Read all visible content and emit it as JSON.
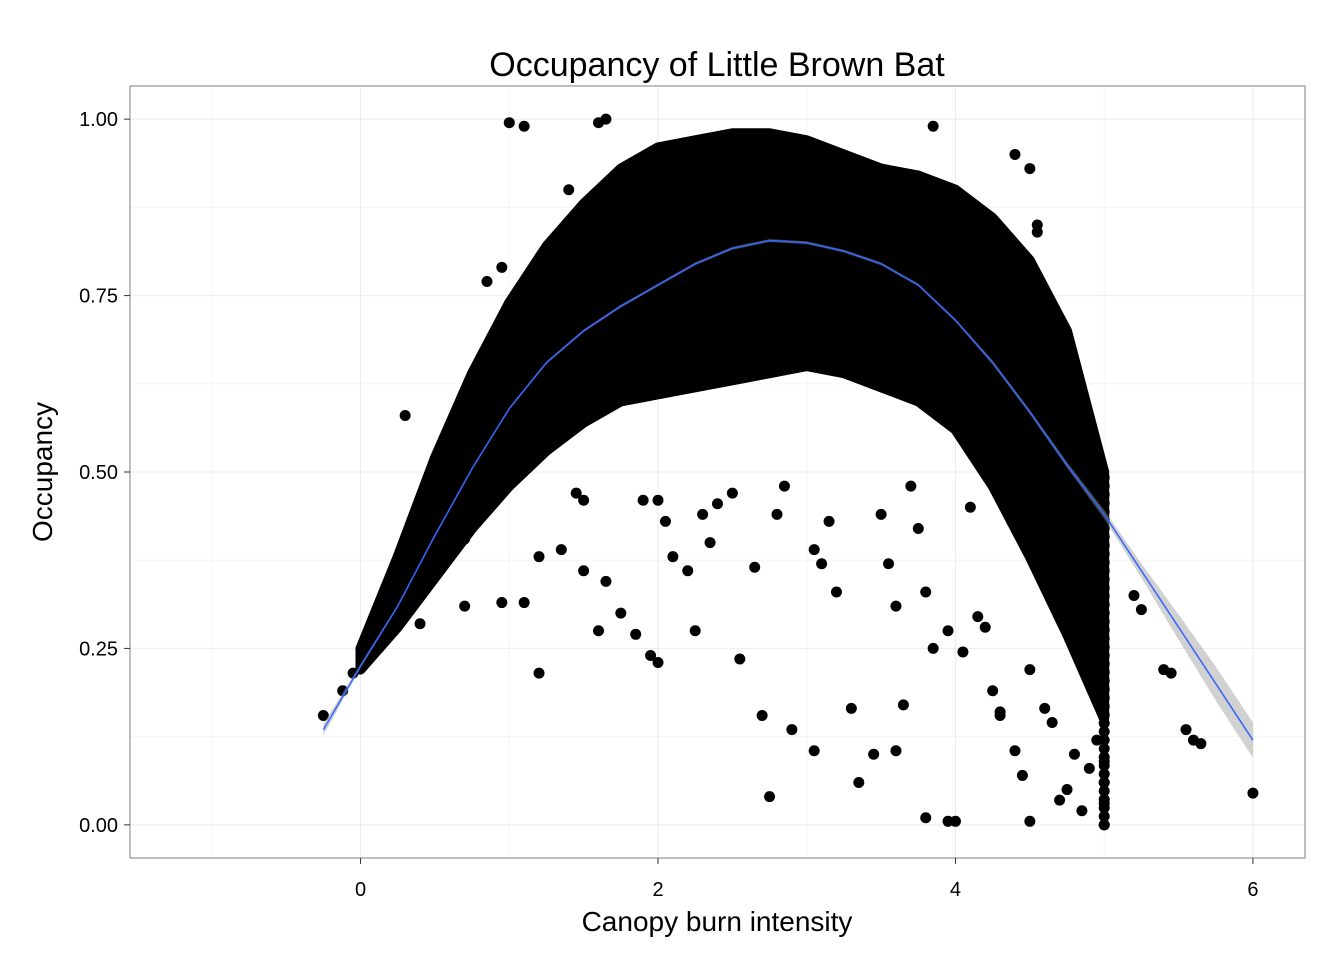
{
  "chart_data": {
    "type": "scatter",
    "title": "Occupancy of Little Brown Bat",
    "xlabel": "Canopy burn intensity",
    "ylabel": "Occupancy",
    "xlim": [
      -1.55,
      6.35
    ],
    "ylim": [
      -0.047,
      1.047
    ],
    "x_ticks": [
      0,
      2,
      4,
      6
    ],
    "x_tick_labels": [
      "0",
      "2",
      "4",
      "6"
    ],
    "y_ticks": [
      0,
      0.25,
      0.5,
      0.75,
      1.0
    ],
    "y_tick_labels": [
      "0.00",
      "0.25",
      "0.50",
      "0.75",
      "1.00"
    ],
    "grid": true,
    "colors": {
      "points": "#000000",
      "smooth_line": "#3366FF",
      "ci_band": "#999999",
      "grid": "#EBEBEB",
      "panel_border": "#7F7F7F"
    },
    "smooth": {
      "x": [
        -0.25,
        0,
        0.25,
        0.5,
        0.75,
        1.0,
        1.25,
        1.5,
        1.75,
        2.0,
        2.25,
        2.5,
        2.75,
        3.0,
        3.25,
        3.5,
        3.75,
        4.0,
        4.25,
        4.5,
        4.75,
        5.0,
        5.25,
        5.5,
        5.75,
        6.0
      ],
      "y": [
        0.135,
        0.225,
        0.31,
        0.41,
        0.505,
        0.59,
        0.655,
        0.7,
        0.735,
        0.765,
        0.795,
        0.817,
        0.828,
        0.825,
        0.813,
        0.795,
        0.765,
        0.715,
        0.655,
        0.585,
        0.51,
        0.44,
        0.36,
        0.28,
        0.2,
        0.12
      ],
      "ci_lower": [
        0.127,
        0.222,
        0.308,
        0.408,
        0.503,
        0.588,
        0.653,
        0.698,
        0.733,
        0.763,
        0.793,
        0.815,
        0.826,
        0.823,
        0.811,
        0.793,
        0.763,
        0.713,
        0.652,
        0.582,
        0.506,
        0.434,
        0.35,
        0.262,
        0.176,
        0.095
      ],
      "ci_upper": [
        0.143,
        0.228,
        0.312,
        0.412,
        0.507,
        0.592,
        0.657,
        0.702,
        0.737,
        0.767,
        0.797,
        0.819,
        0.83,
        0.827,
        0.815,
        0.797,
        0.767,
        0.717,
        0.658,
        0.588,
        0.514,
        0.446,
        0.37,
        0.298,
        0.224,
        0.145
      ]
    },
    "point_cloud_envelope": {
      "description_values": "dense scatter region, lower and upper occupancy bounds by canopy burn intensity",
      "x": [
        0,
        0.25,
        0.5,
        0.75,
        1.0,
        1.25,
        1.5,
        1.75,
        2.0,
        2.25,
        2.5,
        2.75,
        3.0,
        3.25,
        3.5,
        3.75,
        4.0,
        4.25,
        4.5,
        4.75,
        5.0
      ],
      "lower": [
        0.22,
        0.28,
        0.35,
        0.42,
        0.48,
        0.53,
        0.57,
        0.6,
        0.61,
        0.62,
        0.63,
        0.64,
        0.65,
        0.64,
        0.62,
        0.6,
        0.56,
        0.48,
        0.38,
        0.27,
        0.15
      ],
      "upper": [
        0.25,
        0.38,
        0.52,
        0.64,
        0.74,
        0.82,
        0.88,
        0.93,
        0.96,
        0.97,
        0.98,
        0.98,
        0.97,
        0.95,
        0.93,
        0.92,
        0.9,
        0.86,
        0.8,
        0.7,
        0.5
      ]
    },
    "points": [
      [
        -0.25,
        0.155
      ],
      [
        -0.12,
        0.19
      ],
      [
        -0.05,
        0.215
      ],
      [
        0.12,
        0.26
      ],
      [
        0.4,
        0.285
      ],
      [
        0.3,
        0.58
      ],
      [
        0.7,
        0.31
      ],
      [
        0.7,
        0.405
      ],
      [
        0.95,
        0.315
      ],
      [
        1.1,
        0.315
      ],
      [
        1.2,
        0.215
      ],
      [
        1.0,
        0.995
      ],
      [
        1.1,
        0.99
      ],
      [
        1.2,
        0.38
      ],
      [
        1.6,
        0.275
      ],
      [
        1.35,
        0.39
      ],
      [
        1.5,
        0.36
      ],
      [
        1.65,
        0.345
      ],
      [
        1.75,
        0.3
      ],
      [
        1.85,
        0.27
      ],
      [
        1.95,
        0.24
      ],
      [
        2.0,
        0.23
      ],
      [
        2.1,
        0.38
      ],
      [
        2.2,
        0.36
      ],
      [
        2.25,
        0.275
      ],
      [
        2.3,
        0.44
      ],
      [
        2.35,
        0.4
      ],
      [
        1.6,
        0.995
      ],
      [
        1.65,
        1.0
      ],
      [
        2.4,
        0.455
      ],
      [
        2.5,
        0.47
      ],
      [
        2.55,
        0.235
      ],
      [
        2.65,
        0.365
      ],
      [
        2.7,
        0.155
      ],
      [
        2.75,
        0.04
      ],
      [
        2.8,
        0.44
      ],
      [
        2.85,
        0.48
      ],
      [
        2.9,
        0.135
      ],
      [
        3.05,
        0.105
      ],
      [
        3.05,
        0.39
      ],
      [
        3.1,
        0.37
      ],
      [
        3.2,
        0.33
      ],
      [
        3.3,
        0.165
      ],
      [
        3.35,
        0.06
      ],
      [
        3.45,
        0.1
      ],
      [
        3.55,
        0.37
      ],
      [
        3.6,
        0.31
      ],
      [
        3.6,
        0.105
      ],
      [
        3.65,
        0.17
      ],
      [
        3.75,
        0.42
      ],
      [
        3.8,
        0.33
      ],
      [
        3.85,
        0.25
      ],
      [
        3.8,
        0.01
      ],
      [
        3.95,
        0.005
      ],
      [
        3.95,
        0.275
      ],
      [
        4.0,
        0.005
      ],
      [
        4.05,
        0.245
      ],
      [
        4.15,
        0.295
      ],
      [
        4.2,
        0.28
      ],
      [
        4.25,
        0.19
      ],
      [
        4.3,
        0.155
      ],
      [
        4.3,
        0.16
      ],
      [
        4.4,
        0.105
      ],
      [
        4.45,
        0.07
      ],
      [
        4.5,
        0.005
      ],
      [
        4.5,
        0.22
      ],
      [
        4.6,
        0.165
      ],
      [
        4.65,
        0.145
      ],
      [
        4.7,
        0.035
      ],
      [
        4.75,
        0.05
      ],
      [
        4.8,
        0.1
      ],
      [
        4.85,
        0.02
      ],
      [
        4.9,
        0.08
      ],
      [
        4.95,
        0.12
      ],
      [
        5.0,
        0.0
      ],
      [
        5.0,
        0.03
      ],
      [
        5.0,
        0.06
      ],
      [
        5.0,
        0.09
      ],
      [
        5.2,
        0.325
      ],
      [
        5.25,
        0.305
      ],
      [
        5.4,
        0.22
      ],
      [
        5.45,
        0.215
      ],
      [
        5.55,
        0.135
      ],
      [
        5.6,
        0.12
      ],
      [
        5.65,
        0.115
      ],
      [
        6.0,
        0.045
      ],
      [
        1.9,
        0.46
      ],
      [
        1.5,
        0.46
      ],
      [
        2.05,
        0.43
      ],
      [
        1.45,
        0.47
      ],
      [
        2.0,
        0.46
      ],
      [
        3.15,
        0.43
      ],
      [
        3.5,
        0.44
      ],
      [
        3.7,
        0.48
      ],
      [
        4.1,
        0.45
      ],
      [
        4.6,
        0.36
      ],
      [
        0.95,
        0.79
      ],
      [
        0.85,
        0.77
      ],
      [
        1.4,
        0.9
      ],
      [
        3.85,
        0.99
      ],
      [
        4.4,
        0.95
      ],
      [
        4.5,
        0.93
      ],
      [
        4.55,
        0.84
      ],
      [
        4.55,
        0.85
      ]
    ]
  }
}
